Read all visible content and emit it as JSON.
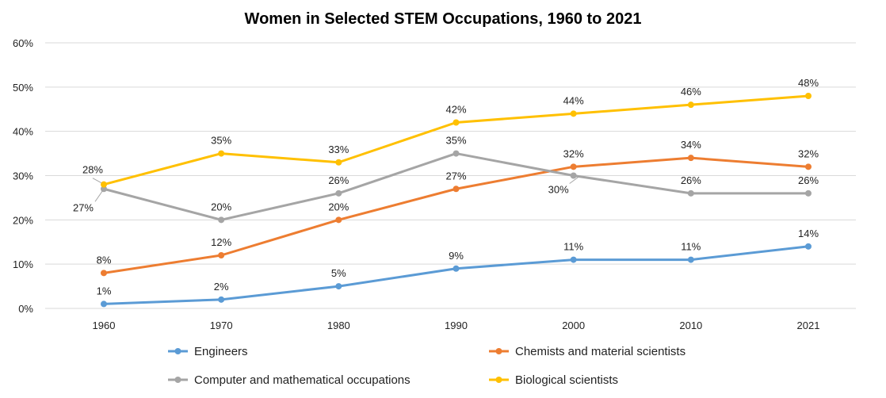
{
  "chart_data": {
    "type": "line",
    "title": "Women in Selected STEM Occupations, 1960 to 2021",
    "categories": [
      "1960",
      "1970",
      "1980",
      "1990",
      "2000",
      "2010",
      "2021"
    ],
    "ylim": [
      0,
      60
    ],
    "yticks": [
      "0%",
      "10%",
      "20%",
      "30%",
      "40%",
      "50%",
      "60%"
    ],
    "grid": true,
    "legend_placement": "bottom",
    "series": [
      {
        "name": "Engineers",
        "color": "#5b9bd5",
        "values": [
          1,
          2,
          5,
          9,
          11,
          11,
          14
        ],
        "labels": [
          "1%",
          "2%",
          "5%",
          "9%",
          "11%",
          "11%",
          "14%"
        ]
      },
      {
        "name": "Chemists and material scientists",
        "color": "#ed7d31",
        "values": [
          8,
          12,
          20,
          27,
          32,
          34,
          32
        ],
        "labels": [
          "8%",
          "12%",
          "20%",
          "27%",
          "32%",
          "34%",
          "32%"
        ]
      },
      {
        "name": "Computer and mathematical occupations",
        "color": "#a5a5a5",
        "values": [
          27,
          20,
          26,
          35,
          30,
          26,
          26
        ],
        "labels": [
          "27%",
          "20%",
          "26%",
          "35%",
          "30%",
          "26%",
          "26%"
        ]
      },
      {
        "name": "Biological scientists",
        "color": "#ffc000",
        "values": [
          28,
          35,
          33,
          42,
          44,
          46,
          48
        ],
        "labels": [
          "28%",
          "35%",
          "33%",
          "42%",
          "44%",
          "46%",
          "48%"
        ]
      }
    ]
  }
}
